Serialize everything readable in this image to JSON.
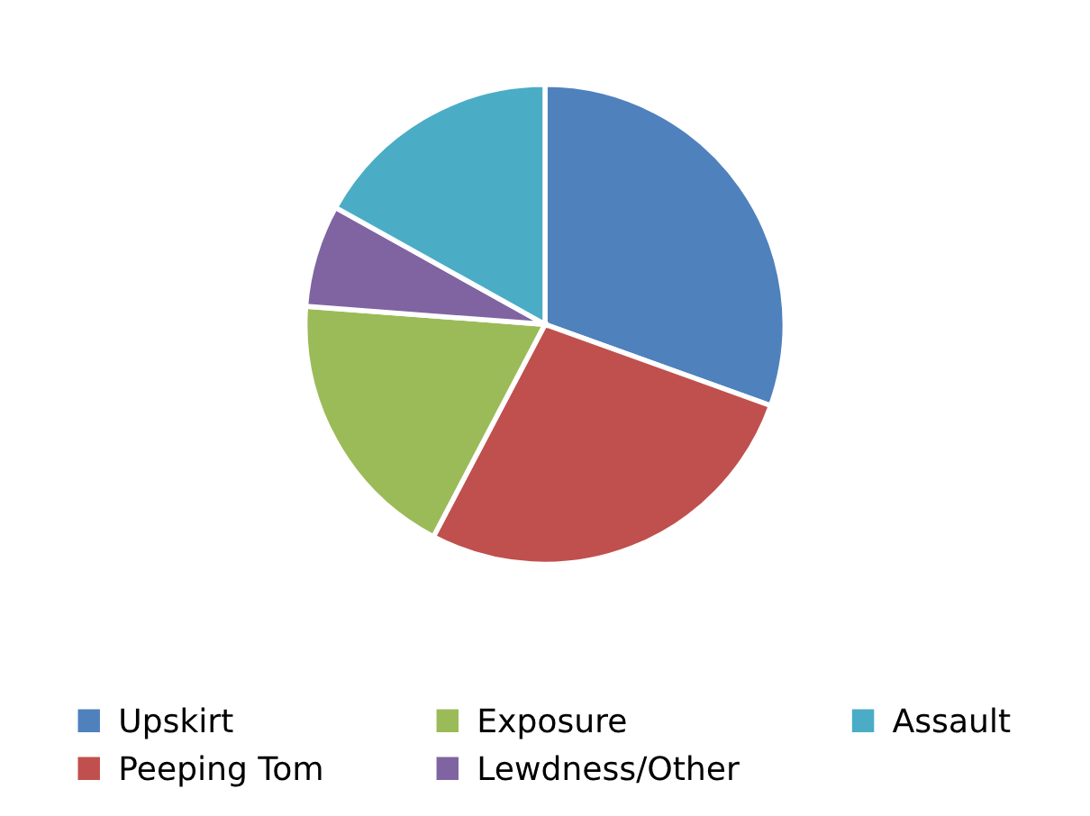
{
  "chart_data": {
    "type": "pie",
    "categories": [
      "Upskirt",
      "Peeping Tom",
      "Exposure",
      "Lewdness/Other",
      "Assault"
    ],
    "values": [
      30.5,
      27.2,
      18.5,
      6.9,
      16.9
    ],
    "colors": [
      "#4f81bd",
      "#c0504d",
      "#9bbb59",
      "#8064a2",
      "#4bacc6"
    ],
    "legend": "bottom"
  }
}
